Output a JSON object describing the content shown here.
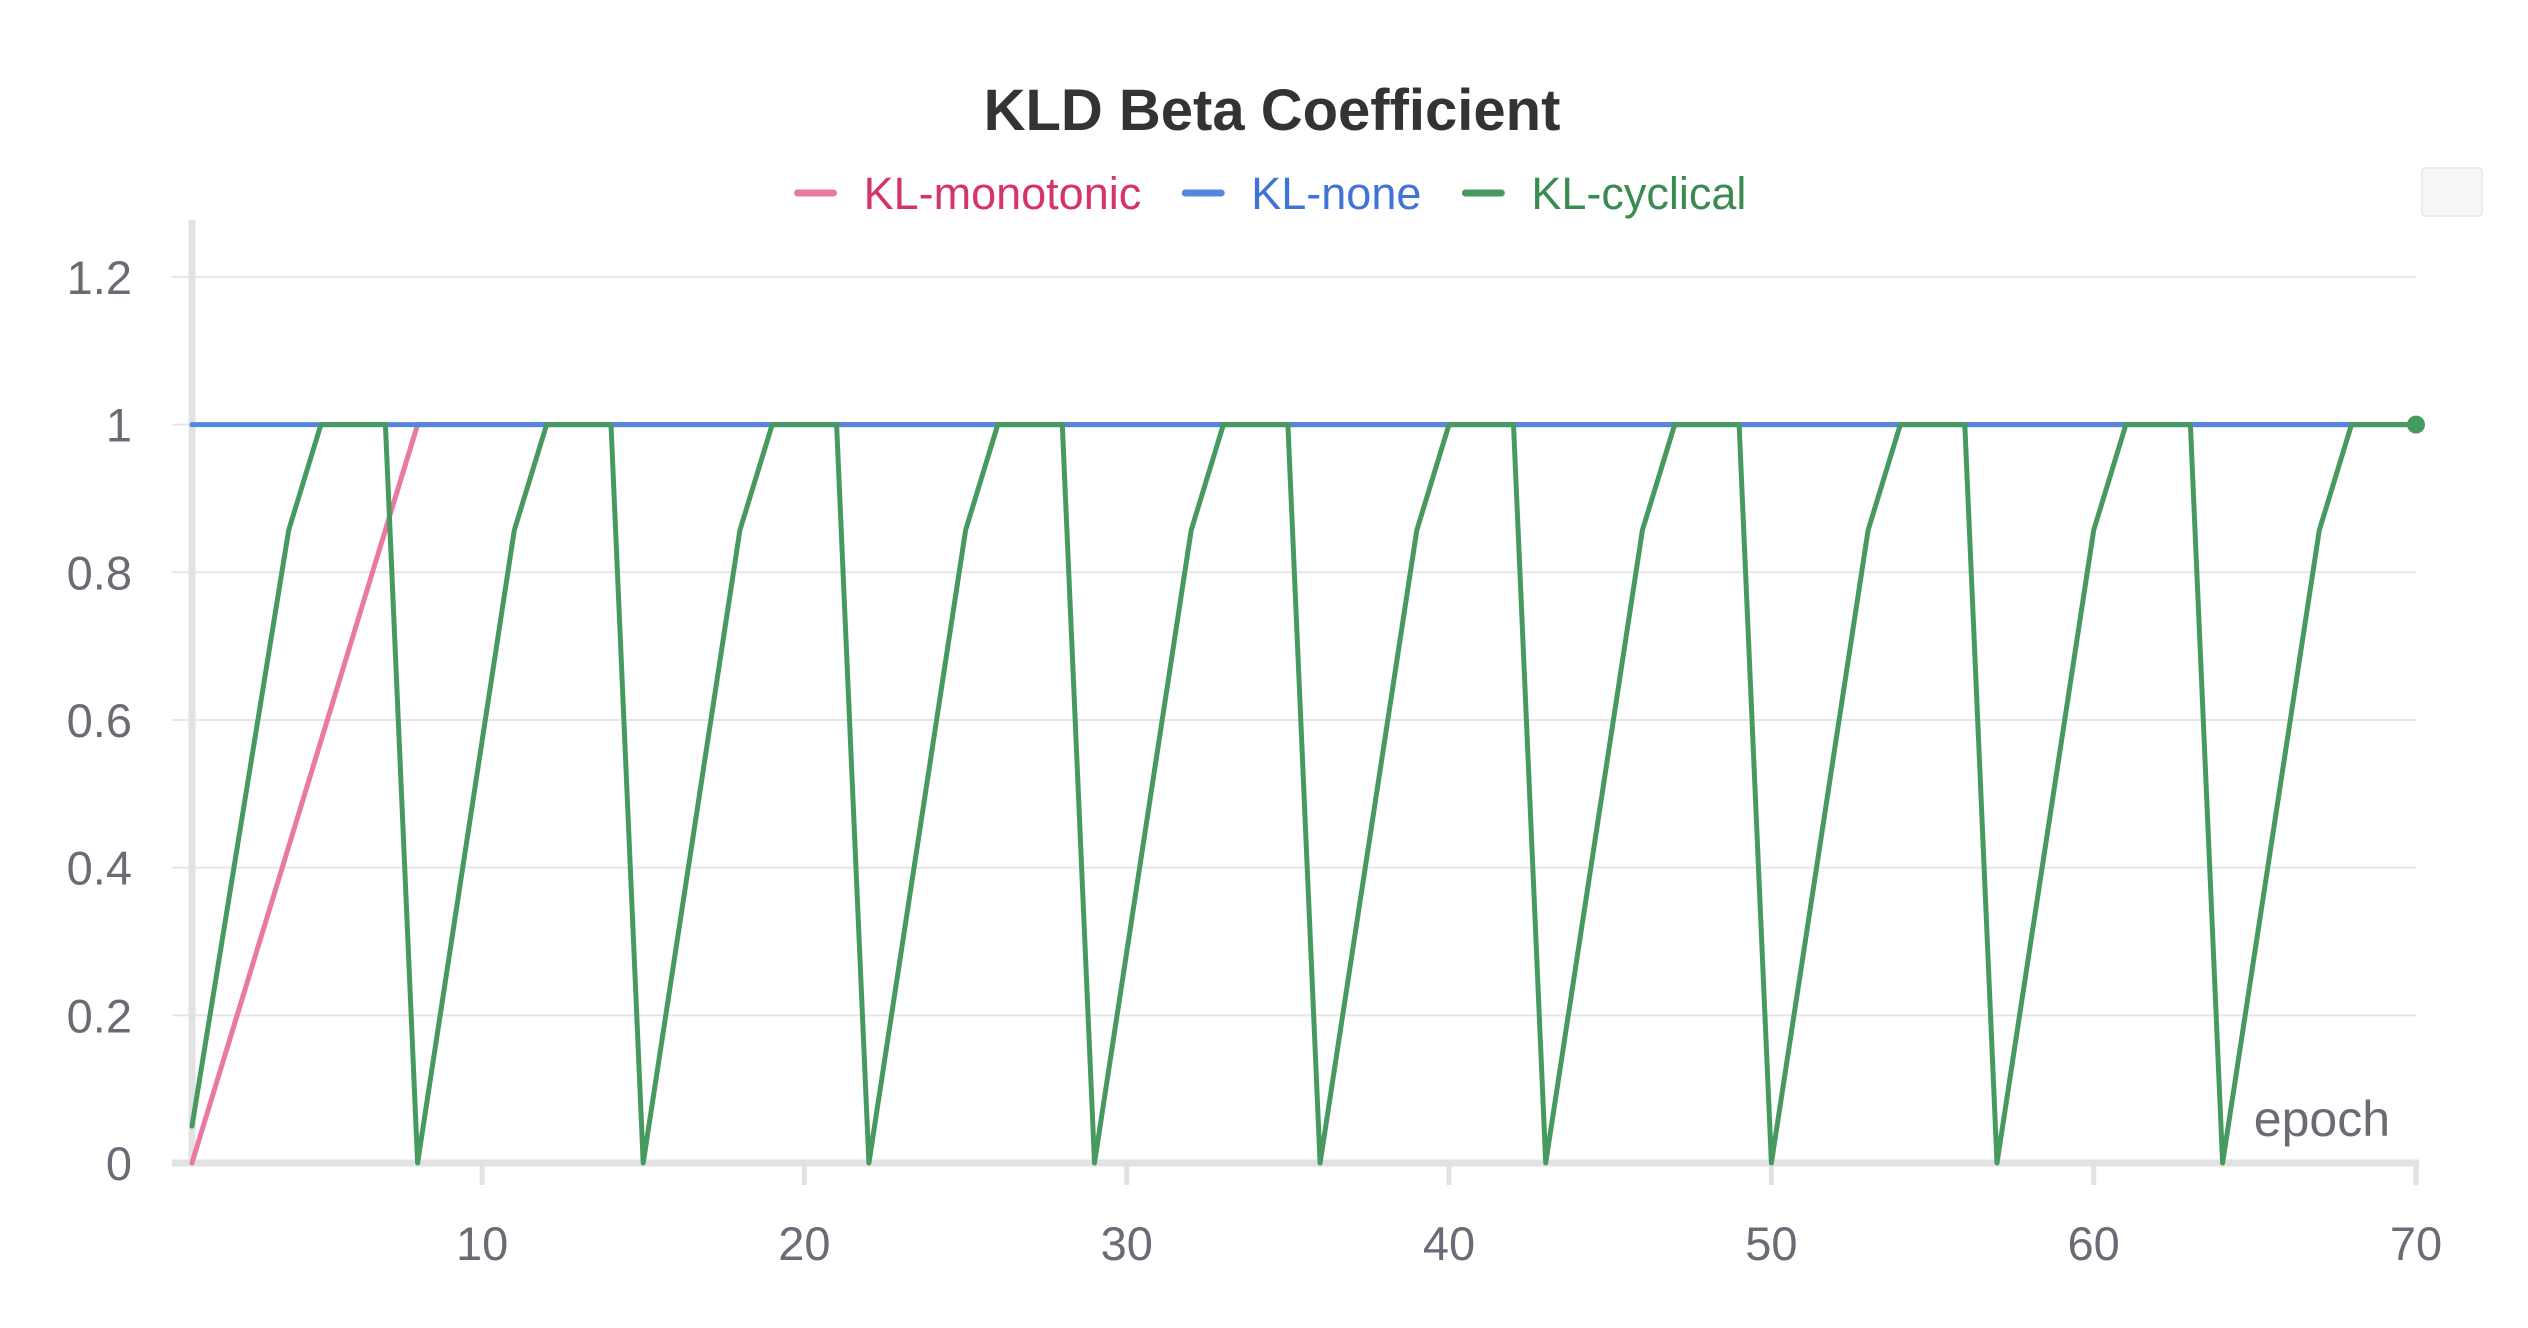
{
  "chart_data": {
    "type": "line",
    "title": "KLD Beta Coefficient",
    "xlabel": "epoch",
    "ylabel": "",
    "xlim": [
      1,
      70
    ],
    "ylim": [
      0,
      1.25
    ],
    "x_ticks": [
      10,
      20,
      30,
      40,
      50,
      60,
      70
    ],
    "y_ticks": [
      0,
      0.2,
      0.4,
      0.6,
      0.8,
      1,
      1.2
    ],
    "y_tick_labels": [
      "0",
      "0.2",
      "0.4",
      "0.6",
      "0.8",
      "1",
      "1.2"
    ],
    "grid": true,
    "legend_position": "top-center",
    "series": [
      {
        "name": "KL-monotonic",
        "color": "#e879a0",
        "text_color": "#d6336c",
        "x": [
          1,
          8,
          9,
          10,
          20,
          30,
          40,
          50,
          60,
          70
        ],
        "y": [
          0,
          1,
          1,
          1,
          1,
          1,
          1,
          1,
          1,
          1
        ]
      },
      {
        "name": "KL-none",
        "color": "#5387dd",
        "text_color": "#3f73d6",
        "x": [
          1,
          10,
          20,
          30,
          40,
          50,
          60,
          70
        ],
        "y": [
          1,
          1,
          1,
          1,
          1,
          1,
          1,
          1
        ]
      },
      {
        "name": "KL-cyclical",
        "color": "#479a5f",
        "text_color": "#3b8a4f",
        "x": [
          1,
          4,
          5,
          7,
          8,
          11,
          12,
          14,
          15,
          18,
          19,
          21,
          22,
          25,
          26,
          28,
          29,
          32,
          33,
          35,
          36,
          39,
          40,
          42,
          43,
          46,
          47,
          49,
          50,
          53,
          54,
          56,
          57,
          60,
          61,
          63,
          64,
          67,
          68,
          70
        ],
        "y": [
          0.05,
          0.857,
          1,
          1,
          0,
          0.857,
          1,
          1,
          0,
          0.857,
          1,
          1,
          0,
          0.857,
          1,
          1,
          0,
          0.857,
          1,
          1,
          0,
          0.857,
          1,
          1,
          0,
          0.857,
          1,
          1,
          0,
          0.857,
          1,
          1,
          0,
          0.857,
          1,
          1,
          0,
          0.857,
          1,
          1
        ]
      }
    ]
  }
}
